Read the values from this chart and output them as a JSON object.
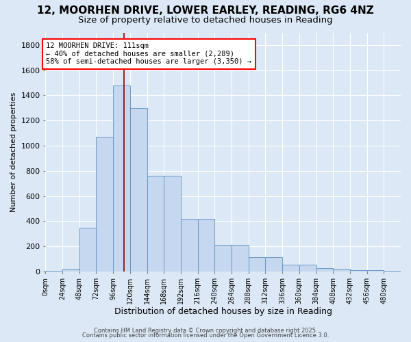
{
  "title1": "12, MOORHEN DRIVE, LOWER EARLEY, READING, RG6 4NZ",
  "title2": "Size of property relative to detached houses in Reading",
  "xlabel": "Distribution of detached houses by size in Reading",
  "ylabel": "Number of detached properties",
  "bar_values": [
    5,
    20,
    350,
    1070,
    1480,
    1300,
    760,
    760,
    420,
    420,
    215,
    215,
    115,
    115,
    55,
    55,
    25,
    20,
    10,
    10,
    5
  ],
  "bin_edges": [
    0,
    24,
    48,
    72,
    96,
    120,
    144,
    168,
    192,
    216,
    240,
    264,
    288,
    312,
    336,
    360,
    384,
    408,
    432,
    456,
    480,
    504
  ],
  "bar_color": "#c5d8f0",
  "bar_edge_color": "#5a8fc0",
  "vline_x": 111,
  "vline_color": "#8b0000",
  "annotation_text": "12 MOORHEN DRIVE: 111sqm\n← 40% of detached houses are smaller (2,289)\n58% of semi-detached houses are larger (3,350) →",
  "annotation_box_color": "white",
  "annotation_box_edge_color": "red",
  "ylim": [
    0,
    1900
  ],
  "xlim": [
    0,
    504
  ],
  "bg_color": "#dce8f5",
  "plot_bg_color": "#dce8f5",
  "grid_color": "#ffffff",
  "title1_fontsize": 11,
  "title2_fontsize": 9.5,
  "xlabel_fontsize": 9,
  "ylabel_fontsize": 8,
  "tick_fontsize": 7,
  "ytick_fontsize": 8,
  "annotation_fontsize": 7.5,
  "footer_line1": "Contains HM Land Registry data © Crown copyright and database right 2025.",
  "footer_line2": "Contains public sector information licensed under the Open Government Licence 3.0.",
  "footer_fontsize": 6,
  "yticks": [
    0,
    200,
    400,
    600,
    800,
    1000,
    1200,
    1400,
    1600,
    1800
  ]
}
